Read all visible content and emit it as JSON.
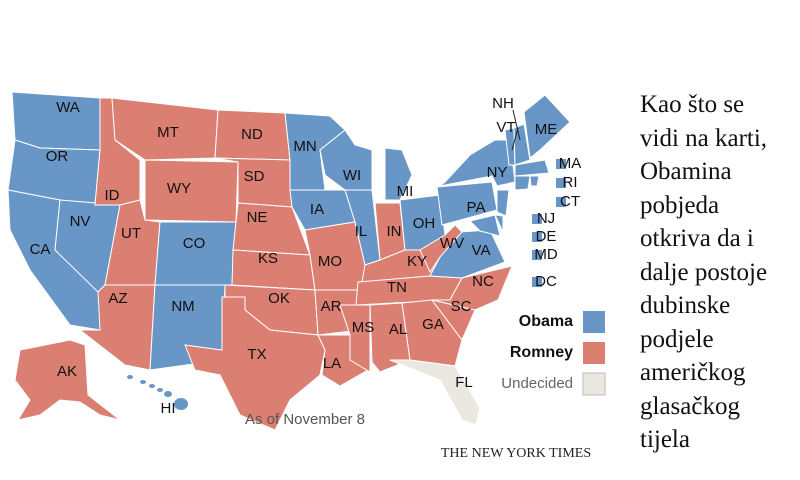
{
  "map": {
    "legend": [
      {
        "label": "Obama",
        "color": "#6896c6"
      },
      {
        "label": "Romney",
        "color": "#da7f72"
      },
      {
        "label": "Undecided",
        "color": "#ebe8e1"
      }
    ],
    "states": [
      {
        "abbr": "WA",
        "winner": "Obama"
      },
      {
        "abbr": "OR",
        "winner": "Obama"
      },
      {
        "abbr": "CA",
        "winner": "Obama"
      },
      {
        "abbr": "NV",
        "winner": "Obama"
      },
      {
        "abbr": "ID",
        "winner": "Romney"
      },
      {
        "abbr": "MT",
        "winner": "Romney"
      },
      {
        "abbr": "WY",
        "winner": "Romney"
      },
      {
        "abbr": "UT",
        "winner": "Romney"
      },
      {
        "abbr": "CO",
        "winner": "Obama"
      },
      {
        "abbr": "AZ",
        "winner": "Romney"
      },
      {
        "abbr": "NM",
        "winner": "Obama"
      },
      {
        "abbr": "ND",
        "winner": "Romney"
      },
      {
        "abbr": "SD",
        "winner": "Romney"
      },
      {
        "abbr": "NE",
        "winner": "Romney"
      },
      {
        "abbr": "KS",
        "winner": "Romney"
      },
      {
        "abbr": "OK",
        "winner": "Romney"
      },
      {
        "abbr": "TX",
        "winner": "Romney"
      },
      {
        "abbr": "MN",
        "winner": "Obama"
      },
      {
        "abbr": "IA",
        "winner": "Obama"
      },
      {
        "abbr": "MO",
        "winner": "Romney"
      },
      {
        "abbr": "AR",
        "winner": "Romney"
      },
      {
        "abbr": "LA",
        "winner": "Romney"
      },
      {
        "abbr": "WI",
        "winner": "Obama"
      },
      {
        "abbr": "IL",
        "winner": "Obama"
      },
      {
        "abbr": "MI",
        "winner": "Obama"
      },
      {
        "abbr": "IN",
        "winner": "Romney"
      },
      {
        "abbr": "OH",
        "winner": "Obama"
      },
      {
        "abbr": "KY",
        "winner": "Romney"
      },
      {
        "abbr": "TN",
        "winner": "Romney"
      },
      {
        "abbr": "MS",
        "winner": "Romney"
      },
      {
        "abbr": "AL",
        "winner": "Romney"
      },
      {
        "abbr": "GA",
        "winner": "Romney"
      },
      {
        "abbr": "FL",
        "winner": "Undecided"
      },
      {
        "abbr": "NC",
        "winner": "Romney"
      },
      {
        "abbr": "SC",
        "winner": "Romney"
      },
      {
        "abbr": "VA",
        "winner": "Obama"
      },
      {
        "abbr": "WV",
        "winner": "Romney"
      },
      {
        "abbr": "PA",
        "winner": "Obama"
      },
      {
        "abbr": "NY",
        "winner": "Obama"
      },
      {
        "abbr": "VT",
        "winner": "Obama"
      },
      {
        "abbr": "NH",
        "winner": "Obama"
      },
      {
        "abbr": "ME",
        "winner": "Obama"
      },
      {
        "abbr": "MA",
        "winner": "Obama"
      },
      {
        "abbr": "RI",
        "winner": "Obama"
      },
      {
        "abbr": "CT",
        "winner": "Obama"
      },
      {
        "abbr": "NJ",
        "winner": "Obama"
      },
      {
        "abbr": "DE",
        "winner": "Obama"
      },
      {
        "abbr": "MD",
        "winner": "Obama"
      },
      {
        "abbr": "DC",
        "winner": "Obama"
      },
      {
        "abbr": "AK",
        "winner": "Romney"
      },
      {
        "abbr": "HI",
        "winner": "Obama"
      }
    ],
    "note": "As of November 8",
    "source": "THE NEW YORK TIMES"
  },
  "caption": {
    "lines": [
      "Kao što se",
      "vidi na karti,",
      "Obamina",
      "pobjeda",
      "otkriva da i",
      "dalje postoje",
      "dubinske",
      "podjele",
      "američkog",
      "glasačkog",
      "tijela"
    ]
  }
}
